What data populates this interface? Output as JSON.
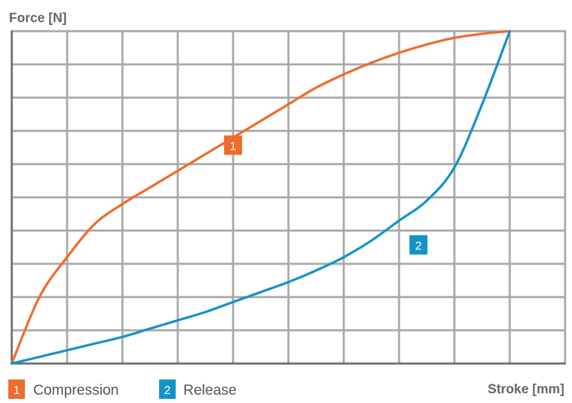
{
  "chart_data": {
    "type": "line",
    "ylabel": "Force [N]",
    "xlabel": "Stroke [mm]",
    "xlim": [
      0,
      10
    ],
    "ylim": [
      0,
      10
    ],
    "grid": true,
    "legend_position": "bottom-left",
    "series": [
      {
        "name": "Compression",
        "marker": "1",
        "color": "#ee6c2c",
        "x": [
          0,
          0.5,
          1,
          1.5,
          2,
          2.5,
          3,
          3.5,
          4,
          4.5,
          5,
          5.5,
          6,
          6.5,
          7,
          7.5,
          8,
          8.5,
          9
        ],
        "y": [
          0,
          2.0,
          3.2,
          4.2,
          4.8,
          5.3,
          5.8,
          6.3,
          6.8,
          7.3,
          7.8,
          8.3,
          8.7,
          9.05,
          9.35,
          9.6,
          9.8,
          9.92,
          10
        ]
      },
      {
        "name": "Release",
        "marker": "2",
        "color": "#1493c8",
        "x": [
          0,
          0.5,
          1,
          1.5,
          2,
          2.5,
          3,
          3.5,
          4,
          4.5,
          5,
          5.5,
          6,
          6.5,
          7,
          7.5,
          8,
          8.5,
          9
        ],
        "y": [
          0,
          0.2,
          0.4,
          0.6,
          0.8,
          1.05,
          1.3,
          1.55,
          1.85,
          2.15,
          2.45,
          2.8,
          3.2,
          3.7,
          4.3,
          4.9,
          5.9,
          7.8,
          10
        ]
      }
    ]
  }
}
